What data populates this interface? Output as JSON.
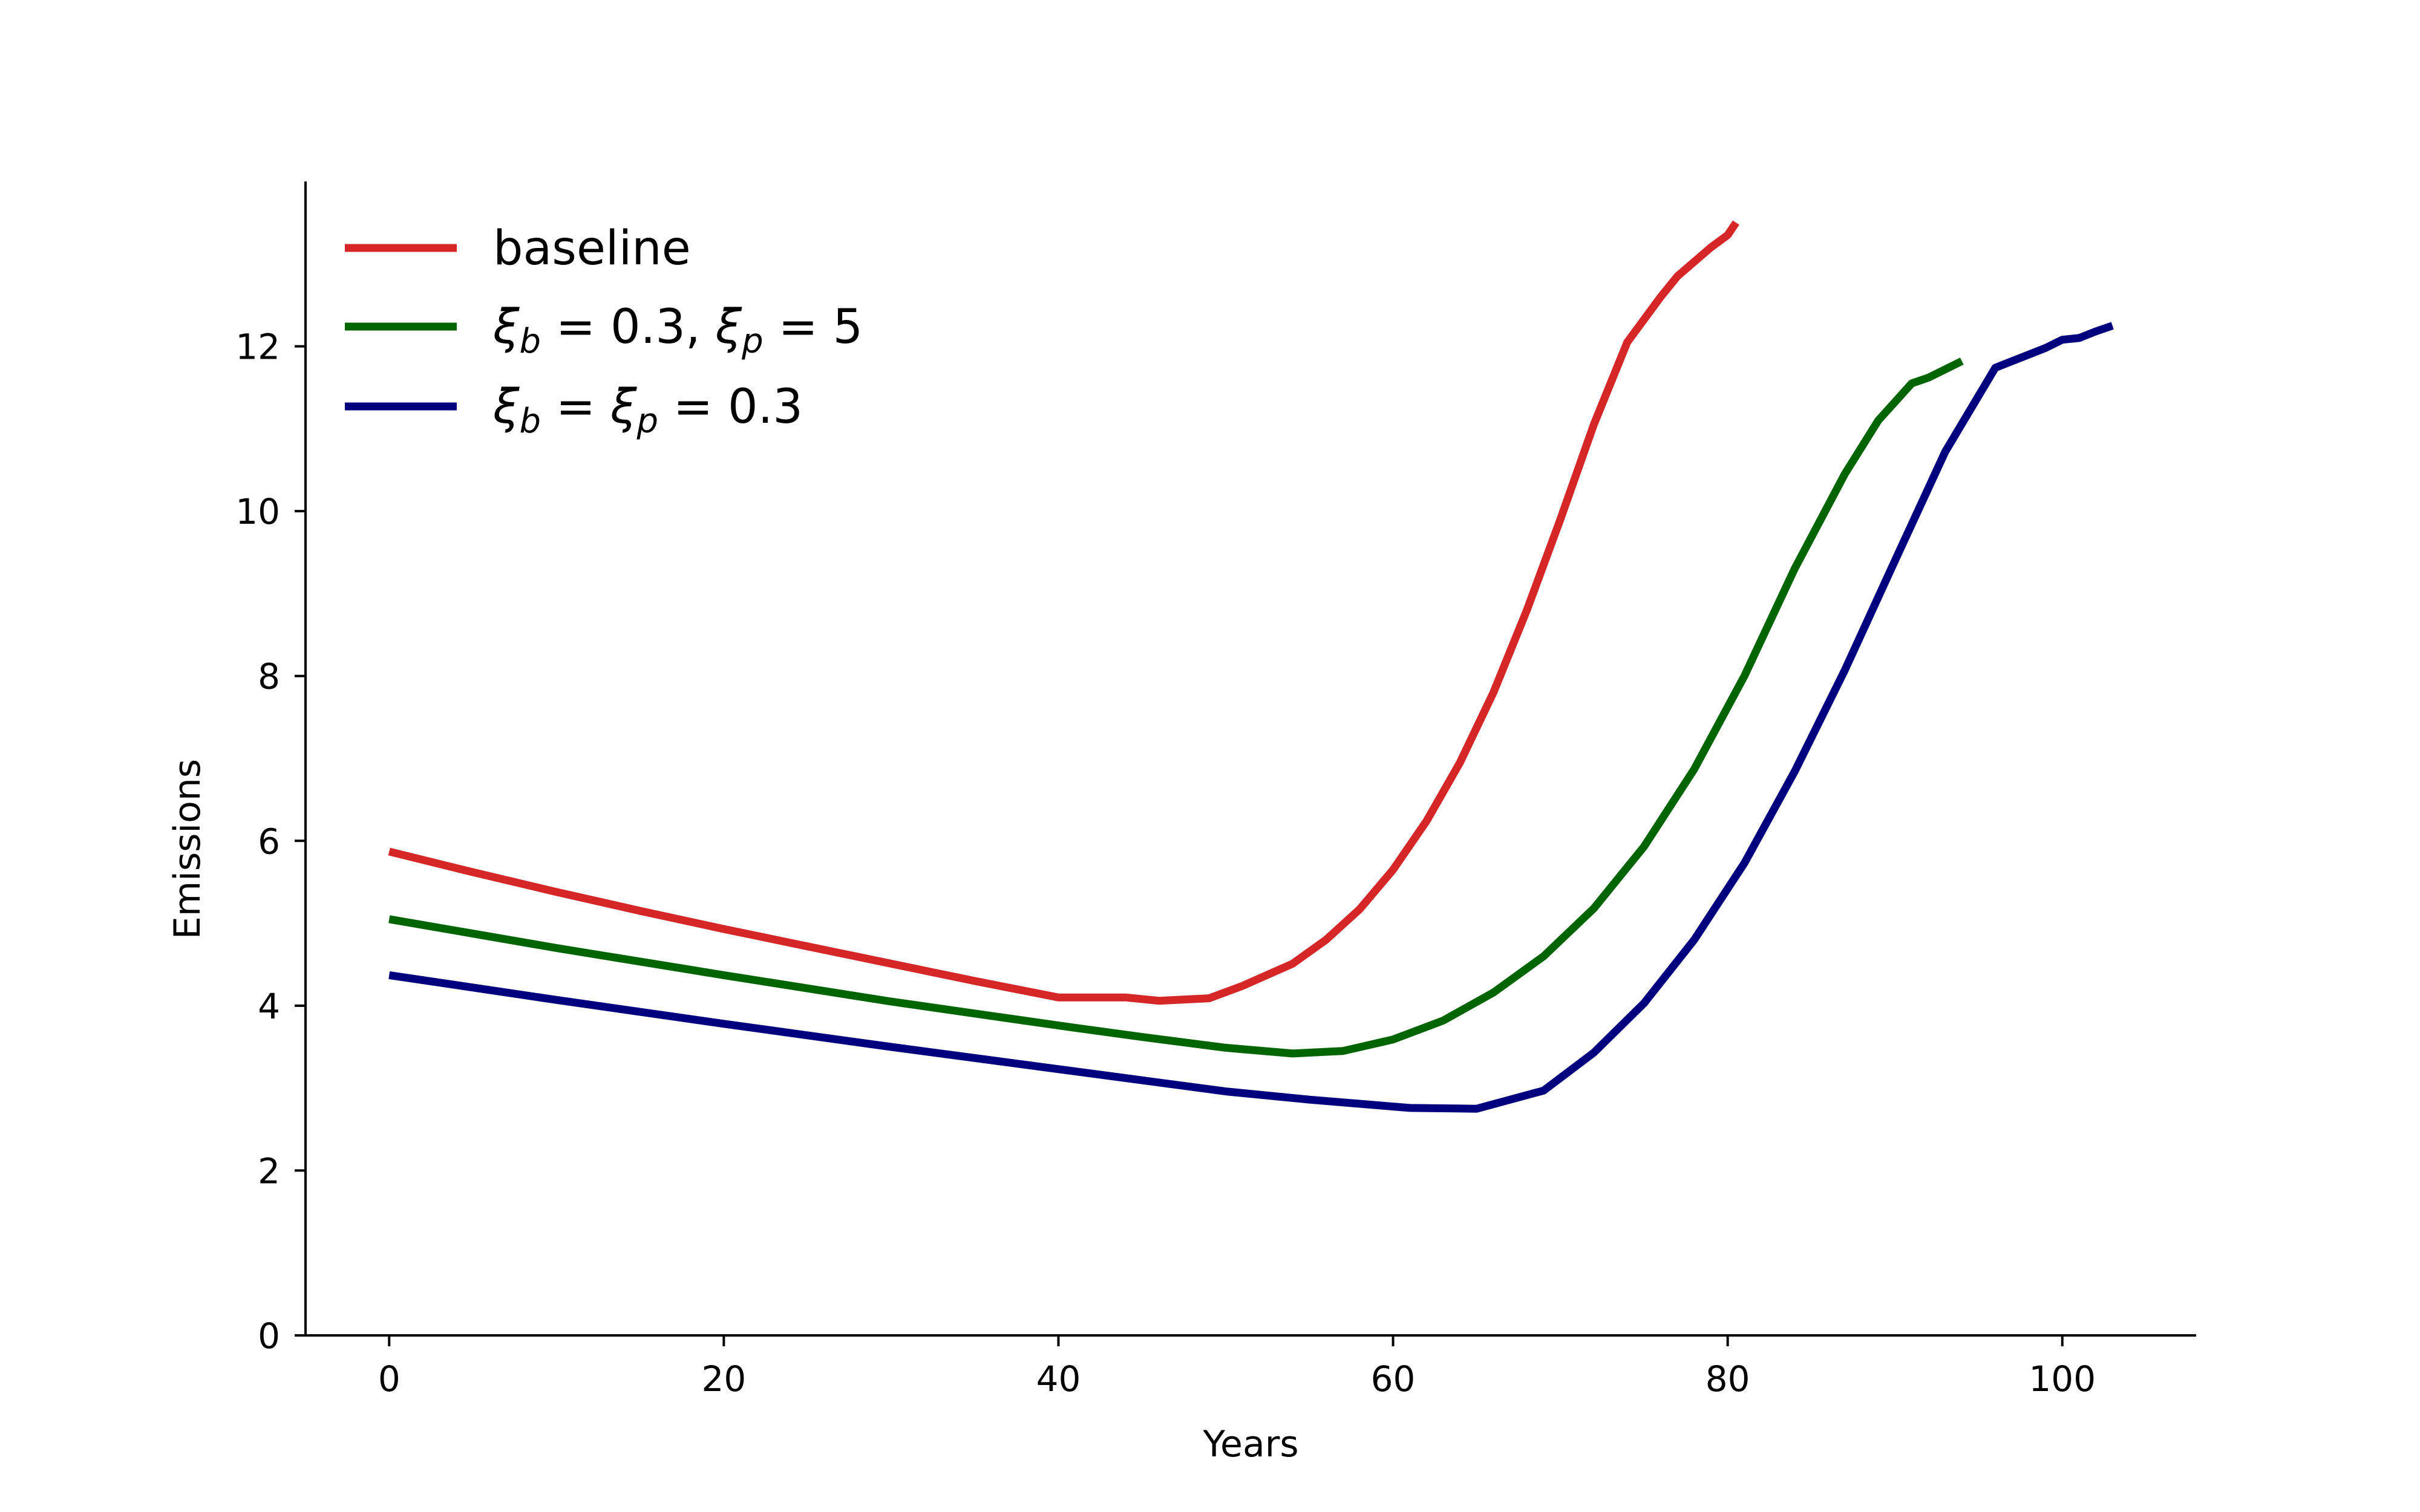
{
  "chart_data": {
    "type": "line",
    "title": "",
    "xlabel": "Years",
    "ylabel": "Emissions",
    "xlim": [
      -5,
      108
    ],
    "ylim": [
      0,
      14
    ],
    "xticks": [
      0,
      20,
      40,
      60,
      80,
      100
    ],
    "yticks": [
      0,
      2,
      4,
      6,
      8,
      10,
      12
    ],
    "grid": false,
    "legend_position": "top-left",
    "series": [
      {
        "name": "baseline",
        "legend_parts": [
          {
            "text": "baseline",
            "style": "normal"
          }
        ],
        "color": "#d62728",
        "x": [
          0,
          5,
          10,
          15,
          20,
          25,
          30,
          35,
          40,
          44,
          46,
          49,
          51,
          54,
          56,
          58,
          60,
          62,
          64,
          66,
          68,
          70,
          72,
          74,
          76,
          77,
          79,
          80,
          80.5
        ],
        "y": [
          5.87,
          5.62,
          5.38,
          5.15,
          4.93,
          4.72,
          4.51,
          4.3,
          4.1,
          4.1,
          4.06,
          4.09,
          4.24,
          4.51,
          4.8,
          5.17,
          5.65,
          6.24,
          6.95,
          7.8,
          8.8,
          9.9,
          11.05,
          12.05,
          12.6,
          12.85,
          13.2,
          13.35,
          13.5
        ]
      },
      {
        "name": "ξb = 0.3, ξp = 5",
        "legend_parts": [
          {
            "text": "ξ",
            "style": "italic"
          },
          {
            "text": "b",
            "style": "sub-italic"
          },
          {
            "text": " = 0.3, ",
            "style": "normal"
          },
          {
            "text": "ξ",
            "style": "italic"
          },
          {
            "text": "p",
            "style": "sub-italic"
          },
          {
            "text": " = 5",
            "style": "normal"
          }
        ],
        "color": "#006400",
        "x": [
          0,
          10,
          20,
          30,
          40,
          45,
          50,
          54,
          57,
          60,
          63,
          66,
          69,
          72,
          75,
          78,
          81,
          84,
          87,
          89,
          91,
          92,
          94
        ],
        "y": [
          5.05,
          4.7,
          4.37,
          4.05,
          3.76,
          3.62,
          3.49,
          3.42,
          3.45,
          3.59,
          3.82,
          4.16,
          4.6,
          5.18,
          5.93,
          6.87,
          8.0,
          9.3,
          10.45,
          11.1,
          11.55,
          11.62,
          11.82
        ]
      },
      {
        "name": "ξb = ξp = 0.3",
        "legend_parts": [
          {
            "text": "ξ",
            "style": "italic"
          },
          {
            "text": "b",
            "style": "sub-italic"
          },
          {
            "text": " = ",
            "style": "normal"
          },
          {
            "text": "ξ",
            "style": "italic"
          },
          {
            "text": "p",
            "style": "sub-italic"
          },
          {
            "text": " = 0.3",
            "style": "normal"
          }
        ],
        "color": "#00007f",
        "x": [
          0,
          10,
          20,
          30,
          40,
          50,
          55,
          61,
          65,
          69,
          72,
          75,
          78,
          81,
          84,
          87,
          90,
          93,
          96,
          99,
          100,
          101,
          102,
          103
        ],
        "y": [
          4.37,
          4.07,
          3.78,
          3.5,
          3.23,
          2.96,
          2.86,
          2.76,
          2.75,
          2.97,
          3.43,
          4.03,
          4.8,
          5.73,
          6.84,
          8.07,
          9.4,
          10.72,
          11.74,
          11.98,
          12.08,
          12.1,
          12.18,
          12.25
        ]
      }
    ]
  }
}
